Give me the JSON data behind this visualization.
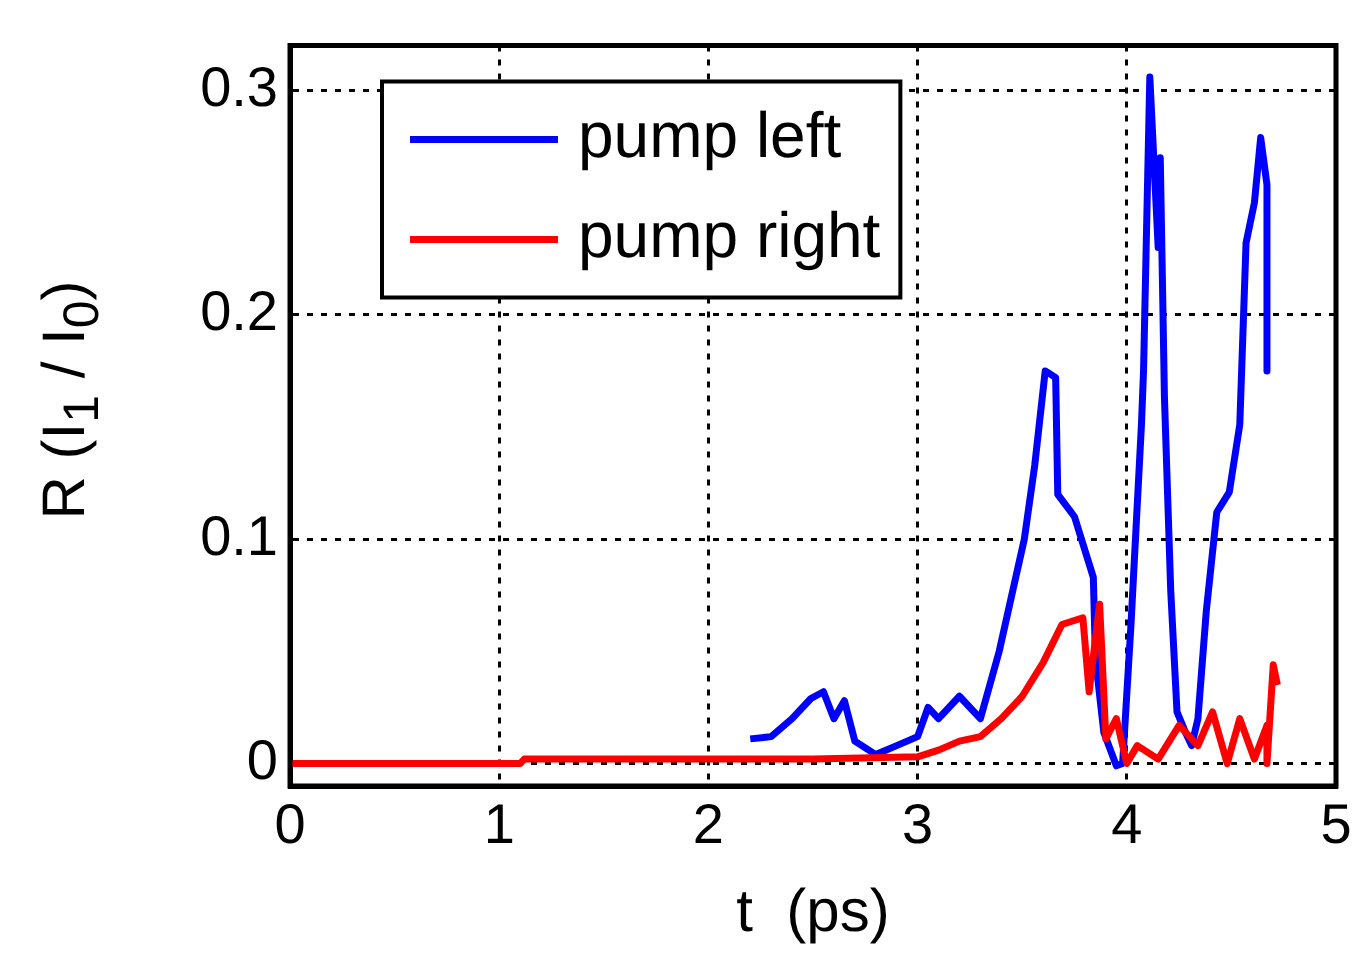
{
  "chart_data": {
    "type": "line",
    "xlabel": "t  (ps)",
    "ylabel": "R  (I$_{1}$ / I$_{0}$)",
    "xlim": [
      0,
      5
    ],
    "xticks": [
      0,
      1,
      2,
      3,
      4,
      5
    ],
    "ylim": [
      -0.01,
      0.32
    ],
    "yticks": [
      0,
      0.1,
      0.2,
      0.3
    ],
    "grid": true,
    "legend": "top left",
    "line_style": "solid",
    "marker": "none",
    "series": [
      {
        "name": "pump left",
        "color": "#0000ff",
        "x": [
          2.2,
          2.3,
          2.4,
          2.49,
          2.55,
          2.6,
          2.65,
          2.7,
          2.8,
          2.9,
          3.0,
          3.05,
          3.1,
          3.2,
          3.3,
          3.39,
          3.51,
          3.56,
          3.61,
          3.66,
          3.67,
          3.75,
          3.84,
          3.85,
          3.89,
          3.95,
          3.98,
          4.02,
          4.07,
          4.08,
          4.11,
          4.15,
          4.16,
          4.18,
          4.21,
          4.24,
          4.28,
          4.31,
          4.34,
          4.38,
          4.43,
          4.49,
          4.54,
          4.57,
          4.61,
          4.64,
          4.67,
          4.67
        ],
        "values": [
          0.011,
          0.012,
          0.02,
          0.029,
          0.032,
          0.02,
          0.028,
          0.01,
          0.004,
          0.008,
          0.012,
          0.025,
          0.02,
          0.03,
          0.02,
          0.05,
          0.1,
          0.133,
          0.175,
          0.172,
          0.12,
          0.11,
          0.083,
          0.047,
          0.014,
          -0.001,
          0,
          0.062,
          0.151,
          0.175,
          0.306,
          0.23,
          0.27,
          0.163,
          0.077,
          0.023,
          0.014,
          0.008,
          0.02,
          0.068,
          0.112,
          0.121,
          0.151,
          0.232,
          0.25,
          0.279,
          0.258,
          0.175
        ]
      },
      {
        "name": "pump right",
        "color": "#ff0000",
        "x": [
          0,
          1.1,
          1.12,
          1.5,
          2.0,
          2.5,
          3.0,
          3.1,
          3.2,
          3.3,
          3.4,
          3.5,
          3.6,
          3.69,
          3.79,
          3.82,
          3.87,
          3.9,
          3.95,
          4.0,
          4.05,
          4.15,
          4.25,
          4.34,
          4.41,
          4.48,
          4.54,
          4.61,
          4.67,
          4.67,
          4.7,
          4.72
        ],
        "values": [
          0,
          0,
          0.002,
          0.002,
          0.002,
          0.002,
          0.003,
          0.006,
          0.01,
          0.012,
          0.02,
          0.03,
          0.045,
          0.062,
          0.065,
          0.032,
          0.071,
          0.011,
          0.02,
          0,
          0.008,
          0.002,
          0.017,
          0.008,
          0.023,
          0,
          0.02,
          0.002,
          0.017,
          0,
          0.044,
          0.035
        ]
      }
    ]
  }
}
